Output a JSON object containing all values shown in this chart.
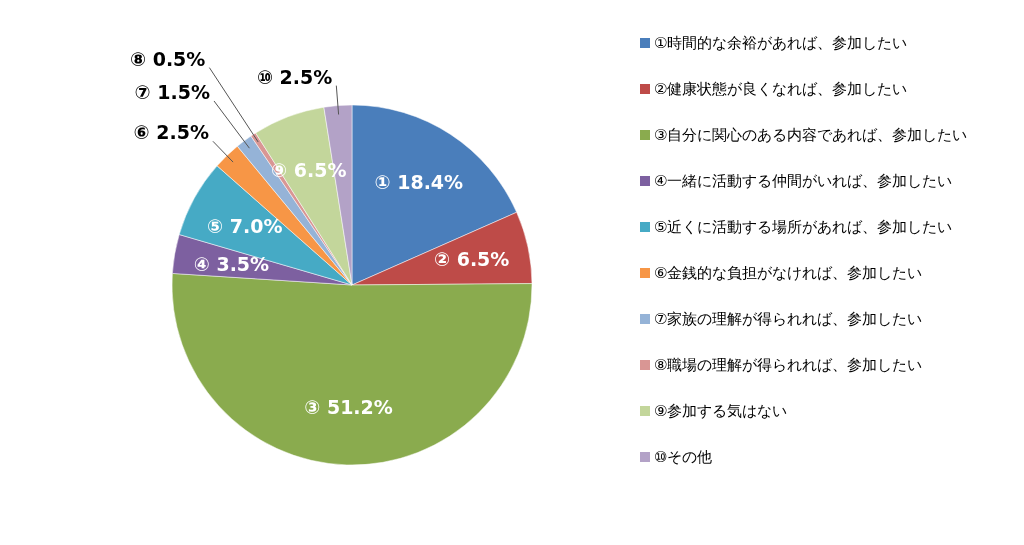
{
  "chart_data": {
    "type": "pie",
    "categories": [
      "①時間的な余裕があれば、参加したい",
      "②健康状態が良くなれば、参加したい",
      "③自分に関心のある内容であれば、参加したい",
      "④一緒に活動する仲間がいれば、参加したい",
      "⑤近くに活動する場所があれば、参加したい",
      "⑥金銭的な負担がなければ、参加したい",
      "⑦家族の理解が得られれば、参加したい",
      "⑧職場の理解が得られれば、参加したい",
      "⑨参加する気はない",
      "⑩その他"
    ],
    "values": [
      18.4,
      6.5,
      51.2,
      3.5,
      7.0,
      2.5,
      1.5,
      0.5,
      6.5,
      2.5
    ],
    "value_labels": [
      "① 18.4%",
      "② 6.5%",
      "③ 51.2%",
      "④ 3.5%",
      "⑤ 7.0%",
      "⑥ 2.5%",
      "⑦ 1.5%",
      "⑧ 0.5%",
      "⑨ 6.5%",
      "⑩ 2.5%"
    ],
    "colors": [
      "#4a7ebb",
      "#be4b48",
      "#8aab4e",
      "#7d60a0",
      "#46aac5",
      "#f79646",
      "#95b3d7",
      "#d99694",
      "#c3d69b",
      "#b3a2c7"
    ],
    "legend": "right"
  }
}
